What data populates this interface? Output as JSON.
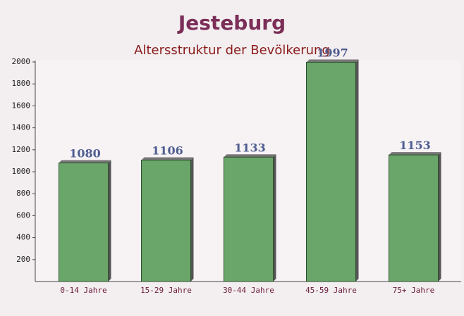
{
  "chart_data": {
    "type": "bar",
    "title": "Jesteburg",
    "subtitle": "Altersstruktur der Bevölkerung",
    "categories": [
      "0-14 Jahre",
      "15-29 Jahre",
      "30-44 Jahre",
      "45-59 Jahre",
      "75+ Jahre"
    ],
    "values": [
      1080,
      1106,
      1133,
      1997,
      1153
    ],
    "color": "#6aa56a",
    "ylim": [
      0,
      2000
    ],
    "yticks": [
      200,
      400,
      600,
      800,
      1000,
      1200,
      1400,
      1600,
      1800,
      2000
    ],
    "grid": false
  }
}
